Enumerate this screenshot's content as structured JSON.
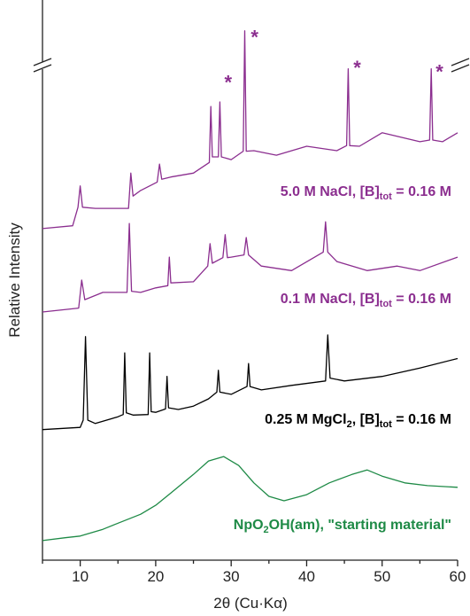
{
  "chart_data": {
    "type": "line",
    "x_label": "2θ (Cu·Kα)",
    "y_label": "Relative Intensity",
    "xlim": [
      5,
      60
    ],
    "xticks": [
      10,
      20,
      30,
      40,
      50,
      60
    ],
    "xminorticks": [
      5,
      15,
      25,
      35,
      45,
      55
    ],
    "ylim": [
      0,
      100
    ],
    "axis_break": true,
    "series": [
      {
        "name": [
          "5.0 M NaCl, [B]",
          "tot",
          " = 0.16 M"
        ],
        "color": "#8b2e8f",
        "x": [
          5,
          9,
          9.7,
          10,
          10.3,
          12,
          16.4,
          16.7,
          17,
          18,
          20.2,
          20.5,
          20.8,
          22,
          25,
          27.1,
          27.3,
          27.5,
          28.3,
          28.5,
          28.7,
          30,
          31.6,
          31.8,
          32,
          33,
          36,
          40,
          44,
          45.3,
          45.5,
          45.7,
          47,
          50,
          55,
          56.3,
          56.5,
          56.7,
          58,
          60
        ],
        "values": [
          59.2,
          59.7,
          63,
          66.8,
          63,
          62.8,
          62.8,
          69.1,
          65,
          66,
          67.5,
          70.7,
          68,
          68.4,
          69.1,
          71,
          81,
          72,
          72,
          81.8,
          72,
          71.5,
          73,
          94.5,
          73,
          73.1,
          72.3,
          73.9,
          73.1,
          74,
          87.7,
          74,
          73.9,
          76.3,
          74.7,
          75,
          87.7,
          75,
          74.7,
          76.3
        ]
      },
      {
        "name": [
          "0.1 M NaCl, [B]",
          "tot",
          " = 0.16 M"
        ],
        "color": "#8b2e8f",
        "x": [
          5,
          9.8,
          10.2,
          10.6,
          13,
          16.2,
          16.5,
          16.8,
          18,
          20,
          21.6,
          21.8,
          22,
          25,
          26.9,
          27.2,
          27.5,
          28.9,
          29.2,
          29.5,
          30,
          31.7,
          32,
          32.3,
          34,
          38,
          42.2,
          42.5,
          42.8,
          44,
          48,
          52,
          55,
          60
        ],
        "values": [
          44.3,
          45,
          50,
          46.5,
          47.8,
          47.8,
          60.1,
          48,
          47.8,
          48.6,
          49,
          54.1,
          49.5,
          49.7,
          52.5,
          56.5,
          53,
          54,
          58.1,
          54,
          54.1,
          54.5,
          57.6,
          54.5,
          52.5,
          51.7,
          55,
          60.4,
          55,
          53.3,
          51.7,
          52.5,
          51.7,
          54.1
        ]
      },
      {
        "name": [
          "0.25 M MgCl",
          "2",
          ", [B]",
          "tot",
          " = 0.16 M"
        ],
        "color": "#000000",
        "x": [
          5,
          10,
          10.4,
          10.7,
          11,
          12,
          15,
          15.7,
          15.9,
          16.1,
          17,
          19,
          19.2,
          19.4,
          20,
          21.3,
          21.5,
          21.7,
          23,
          25,
          27,
          28.1,
          28.3,
          28.5,
          30,
          32.1,
          32.3,
          32.5,
          34,
          38,
          42.5,
          42.8,
          43.1,
          45,
          50,
          55,
          60
        ],
        "values": [
          23.3,
          23.7,
          25,
          39.9,
          25,
          24.4,
          25.6,
          26,
          37,
          26.3,
          25.9,
          26,
          37,
          26.5,
          26.4,
          27,
          32.8,
          27.2,
          26.9,
          27.5,
          28.8,
          30,
          33.9,
          30,
          29.6,
          31,
          35.1,
          31,
          30.4,
          31.2,
          32,
          40.2,
          32.5,
          32,
          32.8,
          34.3,
          36
        ]
      },
      {
        "name": [
          "NpO",
          "2",
          "OH(am), \"starting material\""
        ],
        "color": "#1e8a46",
        "x": [
          5,
          8,
          10,
          13,
          15,
          18,
          20,
          22,
          25,
          27,
          29,
          31,
          33,
          35,
          37,
          40,
          43,
          46,
          48,
          50,
          53,
          56,
          60
        ],
        "values": [
          3.5,
          4,
          4.3,
          5.5,
          6.6,
          8.2,
          9.8,
          12,
          15.3,
          17.7,
          18.5,
          16.9,
          13.8,
          11.4,
          10.6,
          11.7,
          13.8,
          15.3,
          16.1,
          15,
          13.8,
          13.3,
          13
        ]
      }
    ],
    "annotations": [
      {
        "text": "*",
        "x": 29.6,
        "y": 85.4,
        "color": "#8b2e8f"
      },
      {
        "text": "*",
        "x": 33.1,
        "y": 93.4,
        "color": "#8b2e8f"
      },
      {
        "text": "*",
        "x": 46.7,
        "y": 88,
        "color": "#8b2e8f"
      },
      {
        "text": "*",
        "x": 57.6,
        "y": 87.3,
        "color": "#8b2e8f"
      }
    ]
  }
}
